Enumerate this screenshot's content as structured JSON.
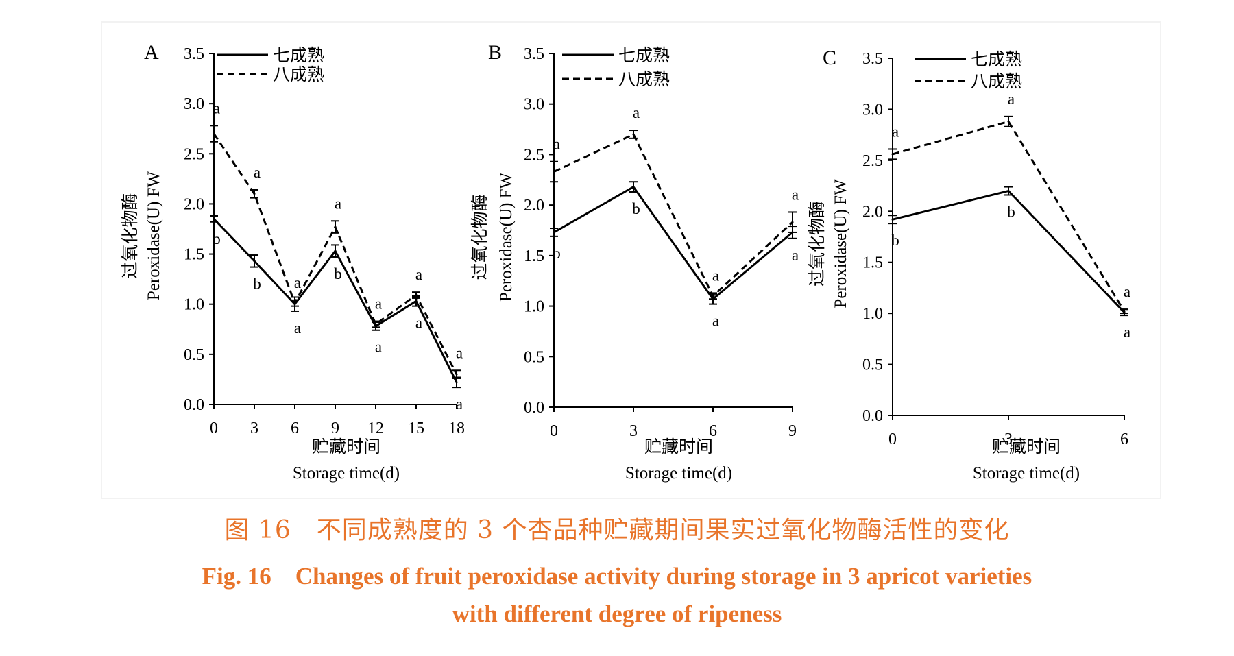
{
  "caption": {
    "cn": "图 16　不同成熟度的 3 个杏品种贮藏期间果实过氧化物酶活性的变化",
    "en_line1": "Fig. 16　Changes of fruit peroxidase activity during storage in 3 apricot varieties",
    "en_line2": "with different degree of ripeness"
  },
  "colors": {
    "line": "#000000",
    "caption": "#e8742a"
  },
  "chart_data": [
    {
      "type": "line",
      "panel_label": "A",
      "ylabel_cn": "过氧化物酶",
      "ylabel_en": "Peroxidase(U) FW",
      "xlabel_cn": "贮藏时间",
      "xlabel_en": "Storage time(d)",
      "x": [
        0,
        3,
        6,
        9,
        12,
        15,
        18
      ],
      "x_ticks": [
        "0",
        "3",
        "6",
        "9",
        "12",
        "15",
        "18"
      ],
      "y_ticks": [
        "0.0",
        "0.5",
        "1.0",
        "1.5",
        "2.0",
        "2.5",
        "3.0",
        "3.5"
      ],
      "ylim": [
        0,
        3.5
      ],
      "legend_position": "top-left",
      "series": [
        {
          "name": "七成熟",
          "style": "solid",
          "values": [
            1.85,
            1.43,
            1.0,
            1.53,
            0.78,
            1.03,
            0.22
          ],
          "errors": [
            0.03,
            0.06,
            0.07,
            0.06,
            0.04,
            0.05,
            0.05
          ],
          "letters": [
            "b",
            "b",
            "a",
            "b",
            "a",
            "a",
            "a"
          ]
        },
        {
          "name": "八成熟",
          "style": "dashed",
          "values": [
            2.7,
            2.1,
            1.01,
            1.77,
            0.8,
            1.09,
            0.3
          ],
          "errors": [
            0.08,
            0.04,
            0.03,
            0.06,
            0.03,
            0.03,
            0.04
          ],
          "letters": [
            "a",
            "a",
            "a",
            "a",
            "a",
            "a",
            "a"
          ]
        }
      ]
    },
    {
      "type": "line",
      "panel_label": "B",
      "ylabel_cn": "过氧化物酶",
      "ylabel_en": "Peroxidase(U) FW",
      "xlabel_cn": "贮藏时间",
      "xlabel_en": "Storage time(d)",
      "x": [
        0,
        3,
        6,
        9
      ],
      "x_ticks": [
        "0",
        "3",
        "6",
        "9"
      ],
      "y_ticks": [
        "0.0",
        "0.5",
        "1.0",
        "1.5",
        "2.0",
        "2.5",
        "3.0",
        "3.5"
      ],
      "ylim": [
        0,
        3.5
      ],
      "legend_position": "top-left",
      "series": [
        {
          "name": "七成熟",
          "style": "solid",
          "values": [
            1.73,
            2.18,
            1.07,
            1.73
          ],
          "errors": [
            0.04,
            0.05,
            0.05,
            0.06
          ],
          "letters": [
            "b",
            "b",
            "a",
            "a"
          ]
        },
        {
          "name": "八成熟",
          "style": "dashed",
          "values": [
            2.33,
            2.7,
            1.1,
            1.83
          ],
          "errors": [
            0.1,
            0.04,
            0.03,
            0.1
          ],
          "letters": [
            "a",
            "a",
            "a",
            "a"
          ]
        }
      ]
    },
    {
      "type": "line",
      "panel_label": "C",
      "ylabel_cn": "过氧化物酶",
      "ylabel_en": "Peroxidase(U) FW",
      "xlabel_cn": "贮藏时间",
      "xlabel_en": "Storage time(d)",
      "x": [
        0,
        3,
        6
      ],
      "x_ticks": [
        "0",
        "3",
        "6"
      ],
      "y_ticks": [
        "0.0",
        "0.5",
        "1.0",
        "1.5",
        "2.0",
        "2.5",
        "3.0",
        "3.5"
      ],
      "ylim": [
        0,
        3.5
      ],
      "legend_position": "top-left",
      "series": [
        {
          "name": "七成熟",
          "style": "solid",
          "values": [
            1.92,
            2.2,
            1.01
          ],
          "errors": [
            0.04,
            0.04,
            0.03
          ],
          "letters": [
            "b",
            "b",
            "a"
          ]
        },
        {
          "name": "八成熟",
          "style": "dashed",
          "values": [
            2.56,
            2.88,
            1.02
          ],
          "errors": [
            0.05,
            0.05,
            0.02
          ],
          "letters": [
            "a",
            "a",
            "a"
          ]
        }
      ]
    }
  ]
}
